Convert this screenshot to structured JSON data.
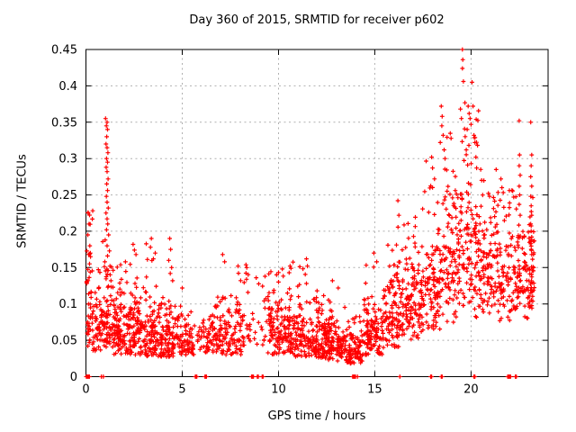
{
  "chart_data": {
    "type": "scatter",
    "title": "Day 360 of 2015, SRMTID for receiver p602",
    "xlabel": "GPS time / hours",
    "ylabel": "SRMTID / TECUs",
    "xlim": [
      0,
      24
    ],
    "ylim": [
      0,
      0.45
    ],
    "xticks": [
      0,
      5,
      10,
      15,
      20
    ],
    "xtick_labels": [
      "0",
      "5",
      "10",
      "15",
      "20"
    ],
    "yticks": [
      0,
      0.05,
      0.1,
      0.15,
      0.2,
      0.25,
      0.3,
      0.35,
      0.4,
      0.45
    ],
    "ytick_labels": [
      "0",
      "0.05",
      "0.1",
      "0.15",
      "0.2",
      "0.25",
      "0.3",
      "0.35",
      "0.4",
      "0.45"
    ],
    "grid": true,
    "legend": "none",
    "marker": "plus",
    "marker_color": "#ff0000",
    "axis_color": "#000000",
    "grid_color": "#b0b0b0",
    "background": "#ffffff",
    "seed": 1360,
    "clusters_format": "[x0_hours, x1_hours, n_points, y_mode, log_sigma, y_min, y_max] — lognormal scatter bands estimated from pixels",
    "clusters": [
      [
        0.02,
        0.35,
        45,
        0.1,
        0.45,
        0.04,
        0.23
      ],
      [
        0.35,
        0.85,
        50,
        0.065,
        0.38,
        0.035,
        0.15
      ],
      [
        0.85,
        1.35,
        60,
        0.085,
        0.5,
        0.04,
        0.3
      ],
      [
        1.35,
        2.2,
        110,
        0.065,
        0.4,
        0.03,
        0.155
      ],
      [
        2.2,
        3.1,
        110,
        0.062,
        0.42,
        0.03,
        0.175
      ],
      [
        3.1,
        3.8,
        85,
        0.058,
        0.45,
        0.028,
        0.185
      ],
      [
        3.8,
        4.7,
        95,
        0.052,
        0.4,
        0.027,
        0.15
      ],
      [
        4.7,
        5.6,
        80,
        0.05,
        0.33,
        0.03,
        0.1
      ],
      [
        5.6,
        6.1,
        14,
        0.055,
        0.3,
        0.035,
        0.09
      ],
      [
        6.1,
        6.7,
        45,
        0.055,
        0.3,
        0.032,
        0.095
      ],
      [
        6.7,
        7.5,
        70,
        0.058,
        0.35,
        0.03,
        0.12
      ],
      [
        7.5,
        8.2,
        55,
        0.065,
        0.45,
        0.03,
        0.16
      ],
      [
        8.2,
        8.85,
        22,
        0.075,
        0.5,
        0.035,
        0.155
      ],
      [
        8.85,
        9.45,
        14,
        0.07,
        0.45,
        0.04,
        0.135
      ],
      [
        9.45,
        10.5,
        110,
        0.062,
        0.4,
        0.03,
        0.145
      ],
      [
        10.5,
        11.5,
        120,
        0.058,
        0.42,
        0.027,
        0.16
      ],
      [
        11.5,
        12.5,
        120,
        0.052,
        0.4,
        0.025,
        0.135
      ],
      [
        12.5,
        13.5,
        110,
        0.045,
        0.38,
        0.02,
        0.11
      ],
      [
        13.5,
        14.4,
        95,
        0.038,
        0.36,
        0.018,
        0.085
      ],
      [
        14.4,
        15.4,
        110,
        0.058,
        0.4,
        0.03,
        0.17
      ],
      [
        15.4,
        16.4,
        110,
        0.082,
        0.38,
        0.04,
        0.21
      ],
      [
        16.4,
        17.4,
        110,
        0.105,
        0.35,
        0.05,
        0.22
      ],
      [
        17.4,
        18.4,
        115,
        0.13,
        0.38,
        0.06,
        0.3
      ],
      [
        18.4,
        19.4,
        115,
        0.16,
        0.38,
        0.07,
        0.34
      ],
      [
        19.4,
        20.4,
        120,
        0.185,
        0.38,
        0.08,
        0.38
      ],
      [
        20.4,
        21.4,
        105,
        0.165,
        0.33,
        0.08,
        0.3
      ],
      [
        21.4,
        22.4,
        95,
        0.145,
        0.3,
        0.07,
        0.26
      ],
      [
        22.4,
        22.95,
        55,
        0.135,
        0.28,
        0.08,
        0.22
      ],
      [
        22.95,
        23.3,
        55,
        0.15,
        0.3,
        0.09,
        0.26
      ]
    ],
    "outliers": [
      [
        0.12,
        0.225
      ],
      [
        0.16,
        0.21
      ],
      [
        0.1,
        0.195
      ],
      [
        0.2,
        0.18
      ],
      [
        0.14,
        0.168
      ],
      [
        1.02,
        0.355
      ],
      [
        1.1,
        0.35
      ],
      [
        1.06,
        0.345
      ],
      [
        1.12,
        0.34
      ],
      [
        1.08,
        0.33
      ],
      [
        1.04,
        0.32
      ],
      [
        1.1,
        0.315
      ],
      [
        1.14,
        0.308
      ],
      [
        1.07,
        0.3
      ],
      [
        1.12,
        0.295
      ],
      [
        1.05,
        0.288
      ],
      [
        1.1,
        0.282
      ],
      [
        1.15,
        0.272
      ],
      [
        1.08,
        0.265
      ],
      [
        1.12,
        0.256
      ],
      [
        1.06,
        0.248
      ],
      [
        1.1,
        0.24
      ],
      [
        1.16,
        0.232
      ],
      [
        1.04,
        0.225
      ],
      [
        1.1,
        0.217
      ],
      [
        1.13,
        0.21
      ],
      [
        1.07,
        0.202
      ],
      [
        1.18,
        0.195
      ],
      [
        1.0,
        0.188
      ],
      [
        1.1,
        0.18
      ],
      [
        1.22,
        0.173
      ],
      [
        1.12,
        0.166
      ],
      [
        0.98,
        0.158
      ],
      [
        1.25,
        0.152
      ],
      [
        1.15,
        0.146
      ],
      [
        2.05,
        0.158
      ],
      [
        2.45,
        0.182
      ],
      [
        2.52,
        0.174
      ],
      [
        2.6,
        0.168
      ],
      [
        3.4,
        0.19
      ],
      [
        3.35,
        0.178
      ],
      [
        3.6,
        0.17
      ],
      [
        3.5,
        0.162
      ],
      [
        4.35,
        0.19
      ],
      [
        4.4,
        0.175
      ],
      [
        4.3,
        0.16
      ],
      [
        4.45,
        0.15
      ],
      [
        4.38,
        0.142
      ],
      [
        4.5,
        0.132
      ],
      [
        5.0,
        0.122
      ],
      [
        7.1,
        0.168
      ],
      [
        7.2,
        0.158
      ],
      [
        7.9,
        0.152
      ],
      [
        8.35,
        0.15
      ],
      [
        9.3,
        0.138
      ],
      [
        9.9,
        0.14
      ],
      [
        10.2,
        0.148
      ],
      [
        10.6,
        0.152
      ],
      [
        11.45,
        0.162
      ],
      [
        11.5,
        0.152
      ],
      [
        12.8,
        0.132
      ],
      [
        13.1,
        0.122
      ],
      [
        14.95,
        0.17
      ],
      [
        15.1,
        0.158
      ],
      [
        16.2,
        0.242
      ],
      [
        16.25,
        0.222
      ],
      [
        17.95,
        0.302
      ],
      [
        18.0,
        0.287
      ],
      [
        18.1,
        0.272
      ],
      [
        18.45,
        0.372
      ],
      [
        18.5,
        0.358
      ],
      [
        18.48,
        0.345
      ],
      [
        18.55,
        0.332
      ],
      [
        18.4,
        0.322
      ],
      [
        18.6,
        0.312
      ],
      [
        18.65,
        0.3
      ],
      [
        19.45,
        0.368
      ],
      [
        19.5,
        0.355
      ],
      [
        19.55,
        0.45
      ],
      [
        19.57,
        0.436
      ],
      [
        19.55,
        0.424
      ],
      [
        19.6,
        0.406
      ],
      [
        19.85,
        0.372
      ],
      [
        19.9,
        0.362
      ],
      [
        19.95,
        0.355
      ],
      [
        20.0,
        0.347
      ],
      [
        20.05,
        0.405
      ],
      [
        20.1,
        0.372
      ],
      [
        19.8,
        0.34
      ],
      [
        20.15,
        0.332
      ],
      [
        20.2,
        0.322
      ],
      [
        19.75,
        0.312
      ],
      [
        20.25,
        0.302
      ],
      [
        20.5,
        0.285
      ],
      [
        20.55,
        0.27
      ],
      [
        20.9,
        0.252
      ],
      [
        21.55,
        0.272
      ],
      [
        21.6,
        0.26
      ],
      [
        22.5,
        0.352
      ],
      [
        22.52,
        0.305
      ],
      [
        22.5,
        0.29
      ],
      [
        22.55,
        0.277
      ],
      [
        22.5,
        0.262
      ],
      [
        22.53,
        0.25
      ],
      [
        22.5,
        0.237
      ],
      [
        22.55,
        0.222
      ],
      [
        23.1,
        0.35
      ],
      [
        23.15,
        0.305
      ],
      [
        23.12,
        0.29
      ],
      [
        23.1,
        0.275
      ],
      [
        23.15,
        0.262
      ],
      [
        23.1,
        0.248
      ],
      [
        23.12,
        0.235
      ],
      [
        23.15,
        0.222
      ],
      [
        23.1,
        0.21
      ],
      [
        23.12,
        0.2
      ],
      [
        23.15,
        0.192
      ],
      [
        23.1,
        0.183
      ],
      [
        23.12,
        0.175
      ],
      [
        23.15,
        0.168
      ]
    ],
    "zero_markers": [
      0.02,
      0.06,
      0.1,
      0.14,
      0.18,
      0.8,
      0.9,
      5.68,
      5.72,
      5.76,
      6.18,
      6.22,
      6.26,
      8.6,
      8.65,
      8.7,
      8.9,
      8.95,
      9.15,
      9.2,
      13.85,
      13.9,
      13.95,
      14.0,
      14.1,
      16.3,
      17.9,
      17.95,
      18.45,
      18.5,
      20.15,
      20.2,
      21.9,
      21.95,
      22.0,
      22.05,
      22.3,
      22.35
    ]
  }
}
